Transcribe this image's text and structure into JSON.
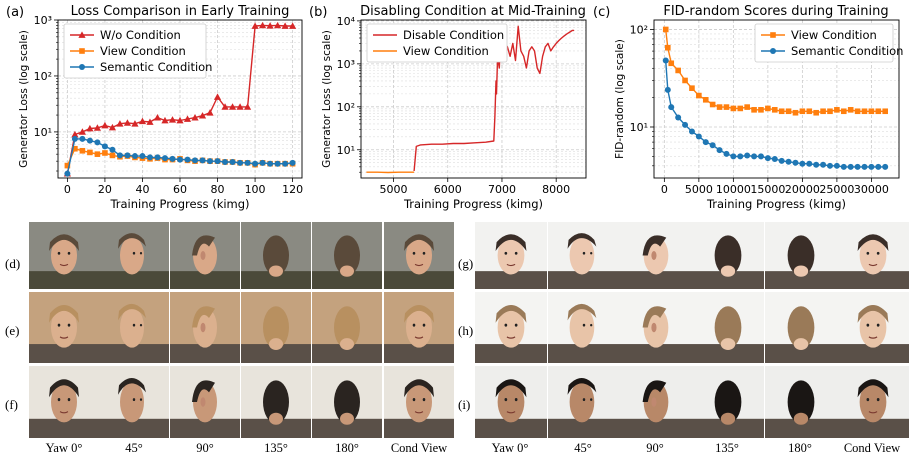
{
  "chart_data": [
    {
      "panel": "(a)",
      "type": "line",
      "title": "Loss Comparison in Early Training",
      "xlabel": "Training Progress (kimg)",
      "ylabel": "Generator Loss (log scale)",
      "yscale": "log",
      "xlim": [
        -5,
        125
      ],
      "ylim": [
        1.5,
        1000
      ],
      "xticks": [
        0,
        20,
        40,
        60,
        80,
        100,
        120
      ],
      "yticks": [
        {
          "v": 10,
          "label": "10¹"
        },
        {
          "v": 100,
          "label": "10²"
        },
        {
          "v": 1000,
          "label": "10³"
        }
      ],
      "legend": "top-left",
      "series": [
        {
          "name": "W/o Condition",
          "color": "#d62728",
          "marker": "triangle",
          "x": [
            0,
            4,
            8,
            12,
            16,
            20,
            24,
            28,
            32,
            36,
            40,
            44,
            48,
            52,
            56,
            60,
            64,
            68,
            72,
            76,
            80,
            84,
            88,
            92,
            96,
            100,
            104,
            108,
            112,
            116,
            120
          ],
          "y": [
            1.8,
            9,
            10,
            11.5,
            11.8,
            13,
            12,
            14,
            14.5,
            14,
            15.5,
            15,
            18,
            16,
            16.5,
            16,
            17,
            18,
            19.5,
            22,
            42,
            28,
            28,
            28,
            28,
            780,
            800,
            790,
            800,
            780,
            780
          ]
        },
        {
          "name": "View Condition",
          "color": "#ff7f0e",
          "marker": "square",
          "x": [
            0,
            4,
            8,
            12,
            16,
            20,
            24,
            28,
            32,
            36,
            40,
            44,
            48,
            52,
            56,
            60,
            64,
            68,
            72,
            76,
            80,
            84,
            88,
            92,
            96,
            100,
            104,
            108,
            112,
            116,
            120
          ],
          "y": [
            2.5,
            5,
            4.6,
            4.3,
            4.0,
            4.2,
            3.8,
            3.6,
            3.7,
            3.5,
            3.4,
            3.3,
            3.4,
            3.2,
            3.2,
            3.3,
            3.1,
            3.0,
            3.1,
            3.0,
            3.0,
            2.9,
            2.9,
            2.8,
            2.8,
            2.6,
            2.8,
            2.7,
            2.7,
            2.7,
            2.7
          ]
        },
        {
          "name": "Semantic Condition",
          "color": "#1f77b4",
          "marker": "circle",
          "x": [
            0,
            4,
            8,
            12,
            16,
            20,
            24,
            28,
            32,
            36,
            40,
            44,
            48,
            52,
            56,
            60,
            64,
            68,
            72,
            76,
            80,
            84,
            88,
            92,
            96,
            100,
            104,
            108,
            112,
            116,
            120
          ],
          "y": [
            1.8,
            7.5,
            7.5,
            7.0,
            6.5,
            5.5,
            4.8,
            3.8,
            3.8,
            3.7,
            3.7,
            3.5,
            3.5,
            3.4,
            3.3,
            3.2,
            3.2,
            3.1,
            3.1,
            3.0,
            3.0,
            2.9,
            2.9,
            2.8,
            2.8,
            2.7,
            2.8,
            2.7,
            2.7,
            2.7,
            2.8
          ]
        }
      ]
    },
    {
      "panel": "(b)",
      "type": "line",
      "title": "Disabling Condition at Mid-Training",
      "xlabel": "Training Progress (kimg)",
      "ylabel": "Generator Loss (log scale)",
      "yscale": "log",
      "xlim": [
        4400,
        8550
      ],
      "ylim": [
        2.2,
        10500
      ],
      "xticks": [
        5000,
        6000,
        7000,
        8000
      ],
      "yticks": [
        {
          "v": 10,
          "label": "10¹"
        },
        {
          "v": 100,
          "label": "10²"
        },
        {
          "v": 1000,
          "label": "10³"
        },
        {
          "v": 10000,
          "label": "10⁴"
        }
      ],
      "legend": "top-left",
      "series": [
        {
          "name": "Disable Condition",
          "color": "#d62728",
          "x": [
            5380,
            5420,
            5500,
            5700,
            5900,
            6100,
            6300,
            6500,
            6700,
            6850,
            6870,
            6890,
            6900,
            6920,
            6950,
            6970,
            7000,
            7050,
            7100,
            7150,
            7200,
            7250,
            7300,
            7350,
            7400,
            7450,
            7500,
            7550,
            7600,
            7650,
            7700,
            7750,
            7800,
            7850,
            7900,
            7950,
            8000,
            8050,
            8100,
            8150,
            8200,
            8250,
            8300,
            8330
          ],
          "y": [
            3.2,
            12,
            13,
            13.5,
            13.5,
            14,
            14,
            14.5,
            15,
            16,
            60,
            400,
            200,
            1500,
            800,
            2500,
            1500,
            3000,
            2500,
            1500,
            3000,
            1200,
            7500,
            2000,
            1500,
            800,
            2000,
            2500,
            2000,
            800,
            600,
            1500,
            2500,
            3000,
            2000,
            2500,
            3000,
            3500,
            4000,
            4500,
            5000,
            5500,
            6000,
            6000
          ]
        },
        {
          "name": "View Condition",
          "color": "#ff7f0e",
          "x": [
            4500,
            4700,
            4900,
            5100,
            5300,
            5380
          ],
          "y": [
            3.0,
            3.0,
            2.95,
            3.0,
            3.0,
            3.0
          ]
        }
      ]
    },
    {
      "panel": "(c)",
      "type": "line",
      "title": "FID-random Scores during Training",
      "xlabel": "Training Progress (kimg)",
      "ylabel": "FID-random (log scale)",
      "yscale": "log",
      "xlim": [
        -1500,
        34000
      ],
      "ylim": [
        3.0,
        125
      ],
      "xticks": [
        0,
        5000,
        10000,
        15000,
        20000,
        25000,
        30000
      ],
      "xticklabels": [
        "0",
        "5000",
        "10000",
        "15000",
        "20000",
        "25000",
        "30000"
      ],
      "yticks": [
        {
          "v": 10,
          "label": "10¹"
        },
        {
          "v": 100,
          "label": "10²"
        }
      ],
      "legend": "top-right",
      "series": [
        {
          "name": "View Condition",
          "color": "#ff7f0e",
          "marker": "square",
          "x": [
            200,
            500,
            1000,
            2000,
            3000,
            4000,
            5000,
            6000,
            7000,
            8000,
            9000,
            10000,
            11000,
            12000,
            13000,
            14000,
            15000,
            16000,
            17000,
            18000,
            19000,
            20000,
            21000,
            22000,
            23000,
            24000,
            25000,
            26000,
            27000,
            28000,
            29000,
            30000,
            31000,
            32000
          ],
          "y": [
            100,
            65,
            45,
            38,
            30,
            25,
            21,
            19,
            17,
            16,
            16,
            15.5,
            15.5,
            16,
            15,
            15,
            15.5,
            15,
            14.5,
            14.5,
            14,
            14.5,
            14.5,
            14,
            14.5,
            14.5,
            15,
            14.5,
            15,
            14.5,
            14.5,
            14.5,
            14.5,
            14.5
          ]
        },
        {
          "name": "Semantic Condition",
          "color": "#1f77b4",
          "marker": "circle",
          "x": [
            200,
            500,
            1000,
            2000,
            3000,
            4000,
            5000,
            6000,
            7000,
            8000,
            9000,
            10000,
            11000,
            12000,
            13000,
            14000,
            15000,
            16000,
            17000,
            18000,
            19000,
            20000,
            21000,
            22000,
            23000,
            24000,
            25000,
            26000,
            27000,
            28000,
            29000,
            30000,
            31000,
            32000
          ],
          "y": [
            48,
            24,
            16,
            12.5,
            10.5,
            9,
            8,
            7,
            6.5,
            5.8,
            5.3,
            5,
            5,
            5.1,
            5,
            5,
            4.8,
            4.7,
            4.5,
            4.4,
            4.3,
            4.2,
            4.2,
            4.1,
            4.1,
            4,
            4,
            3.9,
            3.9,
            3.9,
            3.9,
            3.9,
            3.9,
            3.9
          ]
        }
      ]
    }
  ],
  "panel_labels": {
    "a": "(a)",
    "b": "(b)",
    "c": "(c)"
  },
  "grid": {
    "left_rows": [
      "(d)",
      "(e)",
      "(f)"
    ],
    "right_rows": [
      "(g)",
      "(h)",
      "(i)"
    ],
    "column_labels": [
      "Yaw 0°",
      "45°",
      "90°",
      "135°",
      "180°",
      "Cond View"
    ]
  }
}
